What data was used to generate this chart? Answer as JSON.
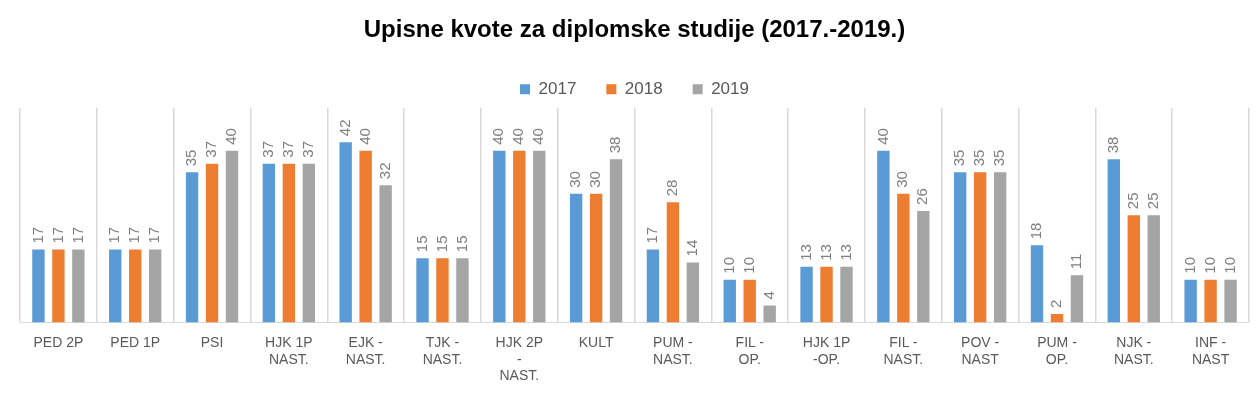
{
  "chart_data": {
    "type": "bar",
    "title": "Upisne kvote za diplomske studije (2017.-2019.)",
    "categories": [
      "PED 2P",
      "PED 1P",
      "PSI",
      "HJK 1P NAST.",
      "EJK - NAST.",
      "TJK - NAST.",
      "HJK 2P - NAST.",
      "KULT",
      "PUM - NAST.",
      "FIL - OP.",
      "HJK 1P -OP.",
      "FIL - NAST.",
      "POV - NAST",
      "PUM - OP.",
      "NJK - NAST.",
      "INF - NAST"
    ],
    "series": [
      {
        "name": "2017",
        "color": "#5b9bd5",
        "values": [
          17,
          17,
          35,
          37,
          42,
          15,
          40,
          30,
          17,
          10,
          13,
          40,
          35,
          18,
          38,
          10
        ]
      },
      {
        "name": "2018",
        "color": "#ed7d31",
        "values": [
          17,
          17,
          37,
          37,
          40,
          15,
          40,
          30,
          28,
          10,
          13,
          30,
          35,
          2,
          25,
          10
        ]
      },
      {
        "name": "2019",
        "color": "#a5a5a5",
        "values": [
          17,
          17,
          40,
          37,
          32,
          15,
          40,
          38,
          14,
          4,
          13,
          26,
          35,
          11,
          25,
          10
        ]
      }
    ],
    "data_labels": true,
    "grid": "x",
    "legend": "top"
  }
}
